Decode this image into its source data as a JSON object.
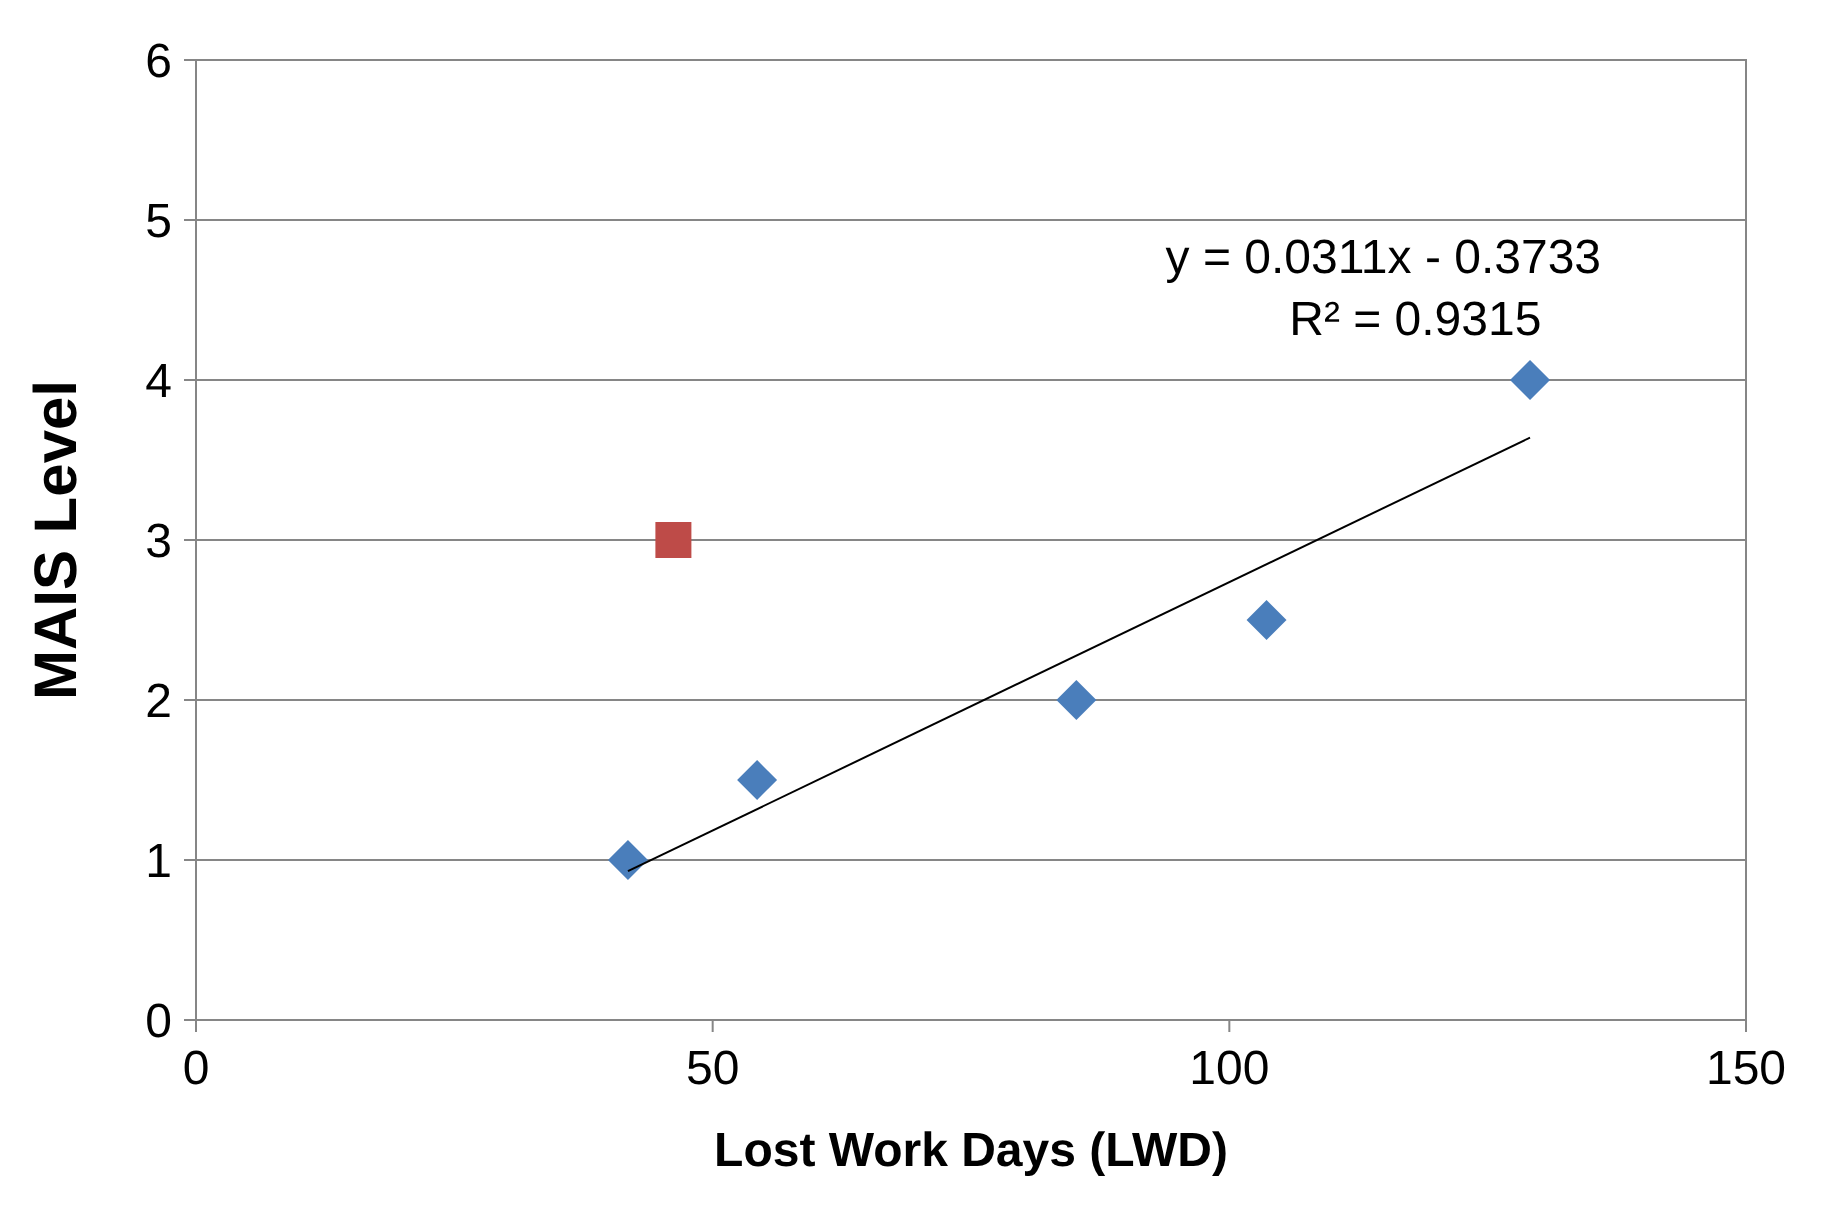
{
  "chart_data": {
    "type": "scatter",
    "xlabel": "Lost Work Days (LWD)",
    "ylabel": "MAIS Level",
    "xlim": [
      0,
      150
    ],
    "xticks": [
      0,
      50,
      100,
      150
    ],
    "ylim": [
      0,
      6
    ],
    "yticks": [
      0,
      1,
      2,
      3,
      4,
      5,
      6
    ],
    "grid": "y",
    "series": [
      {
        "marker": "diamond",
        "color": "#4a7ebb",
        "x": [
          41.8,
          54.3,
          85.2,
          103.6,
          129.1
        ],
        "values": [
          1,
          1.5,
          2,
          2.5,
          4
        ]
      },
      {
        "marker": "square",
        "color": "#be4b48",
        "x": [
          46.2
        ],
        "values": [
          3
        ]
      },
      {
        "type": "line",
        "marker": "none",
        "line_style": "solid",
        "color": "#000000",
        "x": [
          41.8,
          129.1
        ],
        "values": [
          0.93,
          3.64
        ]
      }
    ],
    "annotations": [
      "y = 0.0311x - 0.3733",
      "R² = 0.9315"
    ]
  }
}
